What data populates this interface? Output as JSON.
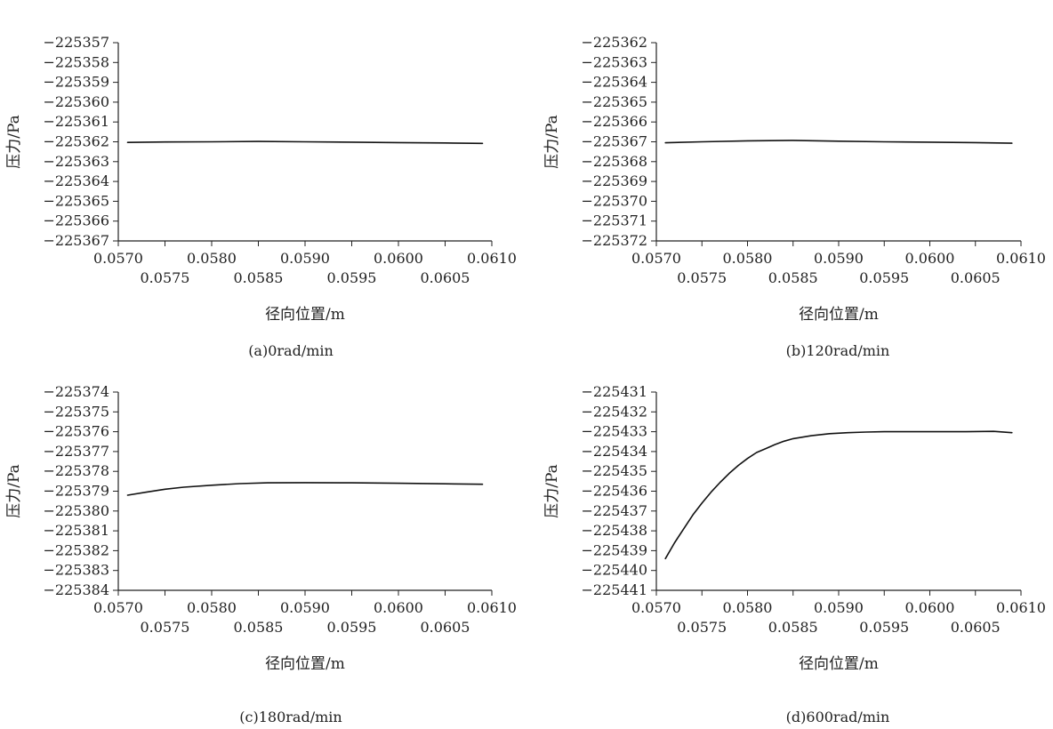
{
  "figure": {
    "charts": [
      {
        "caption": "(a)0rad/min"
      },
      {
        "caption": "(b)120rad/min"
      },
      {
        "caption": "(c)180rad/min"
      },
      {
        "caption": "(d)600rad/min"
      }
    ]
  },
  "colors": {
    "line": "#111111",
    "axis": "#222222",
    "background": "#ffffff"
  },
  "chart_data": [
    {
      "type": "line",
      "title": "",
      "xlabel": "径向位置/m",
      "ylabel": "压力/Pa",
      "xlim": [
        0.057,
        0.061
      ],
      "ylim": [
        -225367,
        -225357
      ],
      "grid": false,
      "x_ticks": [
        0.057,
        0.0575,
        0.058,
        0.0585,
        0.059,
        0.0595,
        0.06,
        0.0605,
        0.061
      ],
      "x_tick_labels": [
        "0.0570",
        "0.0575",
        "0.0580",
        "0.0585",
        "0.0590",
        "0.0595",
        "0.0600",
        "0.0605",
        "0.0610"
      ],
      "y_ticks": [
        -225357,
        -225358,
        -225359,
        -225360,
        -225361,
        -225362,
        -225363,
        -225364,
        -225365,
        -225366,
        -225367
      ],
      "y_tick_labels": [
        "−225357",
        "−225358",
        "−225359",
        "−225360",
        "−225361",
        "−225362",
        "−225363",
        "−225364",
        "−225365",
        "−225366",
        "−225367"
      ],
      "series": [
        {
          "x": [
            0.0571,
            0.0575,
            0.058,
            0.0585,
            0.059,
            0.0595,
            0.06,
            0.0605,
            0.0609
          ],
          "y": [
            -225362.03,
            -225362.01,
            -225362.0,
            -225361.98,
            -225362.0,
            -225362.02,
            -225362.04,
            -225362.06,
            -225362.08
          ]
        }
      ]
    },
    {
      "type": "line",
      "title": "",
      "xlabel": "径向位置/m",
      "ylabel": "压力/Pa",
      "xlim": [
        0.057,
        0.061
      ],
      "ylim": [
        -225372,
        -225362
      ],
      "grid": false,
      "x_ticks": [
        0.057,
        0.0575,
        0.058,
        0.0585,
        0.059,
        0.0595,
        0.06,
        0.0605,
        0.061
      ],
      "x_tick_labels": [
        "0.0570",
        "0.0575",
        "0.0580",
        "0.0585",
        "0.0590",
        "0.0595",
        "0.0600",
        "0.0605",
        "0.0610"
      ],
      "y_ticks": [
        -225362,
        -225363,
        -225364,
        -225365,
        -225366,
        -225367,
        -225368,
        -225369,
        -225370,
        -225371,
        -225372
      ],
      "y_tick_labels": [
        "−225362",
        "−225363",
        "−225364",
        "−225365",
        "−225366",
        "−225367",
        "−225368",
        "−225369",
        "−225370",
        "−225371",
        "−225372"
      ],
      "series": [
        {
          "x": [
            0.0571,
            0.0575,
            0.058,
            0.0585,
            0.059,
            0.0595,
            0.06,
            0.0605,
            0.0609
          ],
          "y": [
            -225367.05,
            -225367.0,
            -225366.95,
            -225366.93,
            -225366.97,
            -225367.0,
            -225367.02,
            -225367.04,
            -225367.07
          ]
        }
      ]
    },
    {
      "type": "line",
      "title": "",
      "xlabel": "径向位置/m",
      "ylabel": "压力/Pa",
      "xlim": [
        0.057,
        0.061
      ],
      "ylim": [
        -225384,
        -225374
      ],
      "grid": false,
      "x_ticks": [
        0.057,
        0.0575,
        0.058,
        0.0585,
        0.059,
        0.0595,
        0.06,
        0.0605,
        0.061
      ],
      "x_tick_labels": [
        "0.0570",
        "0.0575",
        "0.0580",
        "0.0585",
        "0.0590",
        "0.0595",
        "0.0600",
        "0.0605",
        "0.0610"
      ],
      "y_ticks": [
        -225374,
        -225375,
        -225376,
        -225377,
        -225378,
        -225379,
        -225380,
        -225381,
        -225382,
        -225383,
        -225384
      ],
      "y_tick_labels": [
        "−225374",
        "−225375",
        "−225376",
        "−225377",
        "−225378",
        "−225379",
        "−225380",
        "−225381",
        "−225382",
        "−225383",
        "−225384"
      ],
      "series": [
        {
          "x": [
            0.0571,
            0.0573,
            0.0575,
            0.0577,
            0.058,
            0.0583,
            0.0586,
            0.059,
            0.0595,
            0.06,
            0.0605,
            0.0609
          ],
          "y": [
            -225379.2,
            -225379.05,
            -225378.9,
            -225378.8,
            -225378.7,
            -225378.62,
            -225378.58,
            -225378.57,
            -225378.58,
            -225378.6,
            -225378.63,
            -225378.65
          ]
        }
      ]
    },
    {
      "type": "line",
      "title": "",
      "xlabel": "径向位置/m",
      "ylabel": "压力/Pa",
      "xlim": [
        0.057,
        0.061
      ],
      "ylim": [
        -225441,
        -225431
      ],
      "grid": false,
      "x_ticks": [
        0.057,
        0.0575,
        0.058,
        0.0585,
        0.059,
        0.0595,
        0.06,
        0.0605,
        0.061
      ],
      "x_tick_labels": [
        "0.0570",
        "0.0575",
        "0.0580",
        "0.0585",
        "0.0590",
        "0.0595",
        "0.0600",
        "0.0605",
        "0.0610"
      ],
      "y_ticks": [
        -225431,
        -225432,
        -225433,
        -225434,
        -225435,
        -225436,
        -225437,
        -225438,
        -225439,
        -225440,
        -225441
      ],
      "y_tick_labels": [
        "−225431",
        "−225432",
        "−225433",
        "−225434",
        "−225435",
        "−225436",
        "−225437",
        "−225438",
        "−225439",
        "−225440",
        "−225441"
      ],
      "series": [
        {
          "x": [
            0.0571,
            0.0572,
            0.0573,
            0.0574,
            0.0575,
            0.0576,
            0.0577,
            0.0578,
            0.0579,
            0.058,
            0.0581,
            0.0582,
            0.0583,
            0.0584,
            0.0585,
            0.0587,
            0.0589,
            0.0591,
            0.0593,
            0.0595,
            0.0598,
            0.0601,
            0.0604,
            0.0607,
            0.0609
          ],
          "y": [
            -225439.4,
            -225438.6,
            -225437.9,
            -225437.2,
            -225436.6,
            -225436.05,
            -225435.55,
            -225435.1,
            -225434.7,
            -225434.35,
            -225434.05,
            -225433.85,
            -225433.65,
            -225433.48,
            -225433.35,
            -225433.2,
            -225433.1,
            -225433.05,
            -225433.02,
            -225433.0,
            -225433.0,
            -225433.0,
            -225433.0,
            -225432.98,
            -225433.05
          ]
        }
      ]
    }
  ]
}
